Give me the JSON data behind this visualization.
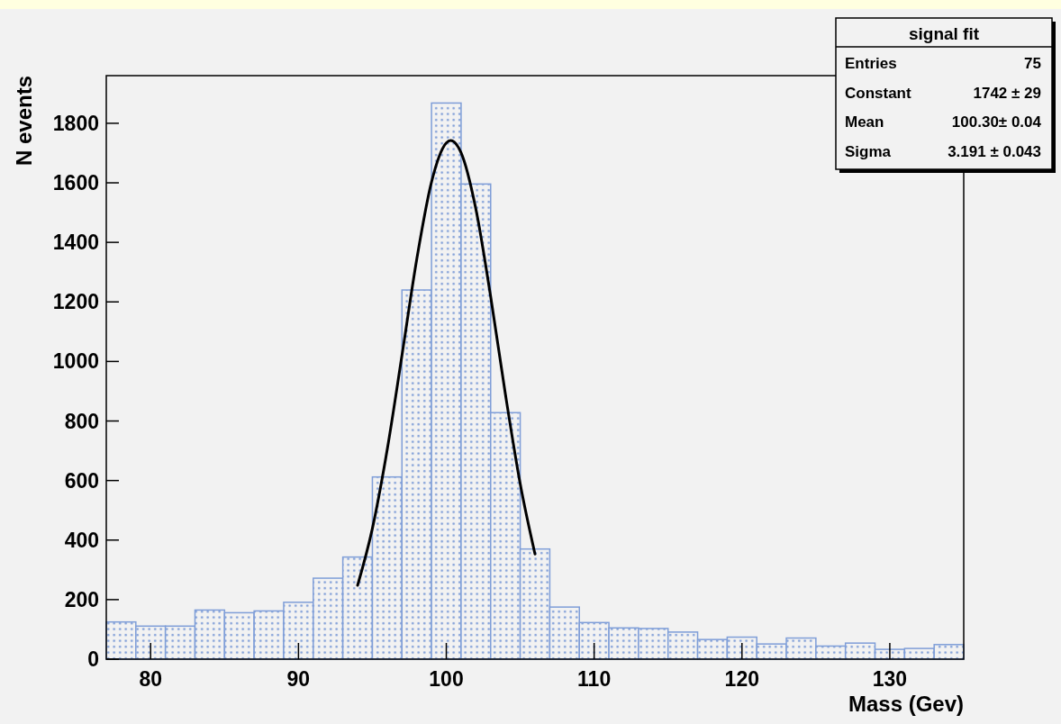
{
  "chart_data": {
    "type": "histogram",
    "xlabel": "Mass (Gev)",
    "ylabel": "N events",
    "bins": [
      77,
      79,
      81,
      83,
      85,
      87,
      89,
      91,
      93,
      95,
      97,
      99,
      101,
      103,
      105,
      107,
      109,
      111,
      113,
      115,
      117,
      119,
      121,
      123,
      125,
      127,
      129,
      131,
      133,
      135
    ],
    "series": [
      {
        "color": "#7f9ed8",
        "values": [
          125,
          111,
          111,
          165,
          156,
          162,
          191,
          272,
          343,
          612,
          1240,
          1868,
          1596,
          828,
          370,
          175,
          123,
          105,
          103,
          91,
          66,
          74,
          51,
          71,
          44,
          54,
          33,
          36,
          49
        ]
      },
      {
        "type": "line",
        "color": "#000000",
        "x": [
          94,
          95,
          96,
          97,
          98,
          99,
          100,
          100.3,
          101,
          102,
          103,
          104,
          105,
          106
        ],
        "values": [
          248,
          439,
          703,
          1020,
          1343,
          1603,
          1734,
          1742,
          1701,
          1512,
          1218,
          889,
          589,
          353
        ]
      }
    ],
    "xlim": [
      77,
      135
    ],
    "xticks": [
      80,
      90,
      100,
      110,
      120,
      130
    ],
    "ylim": [
      0,
      1960
    ],
    "yticks": [
      0,
      200,
      400,
      600,
      800,
      1000,
      1200,
      1400,
      1600,
      1800
    ],
    "grid": false,
    "annotations": [
      "signal fit",
      "Entries",
      "75",
      "Constant",
      "1742 ± 29",
      "Mean",
      "100.30± 0.04",
      "Sigma",
      "3.191 ± 0.043"
    ]
  }
}
